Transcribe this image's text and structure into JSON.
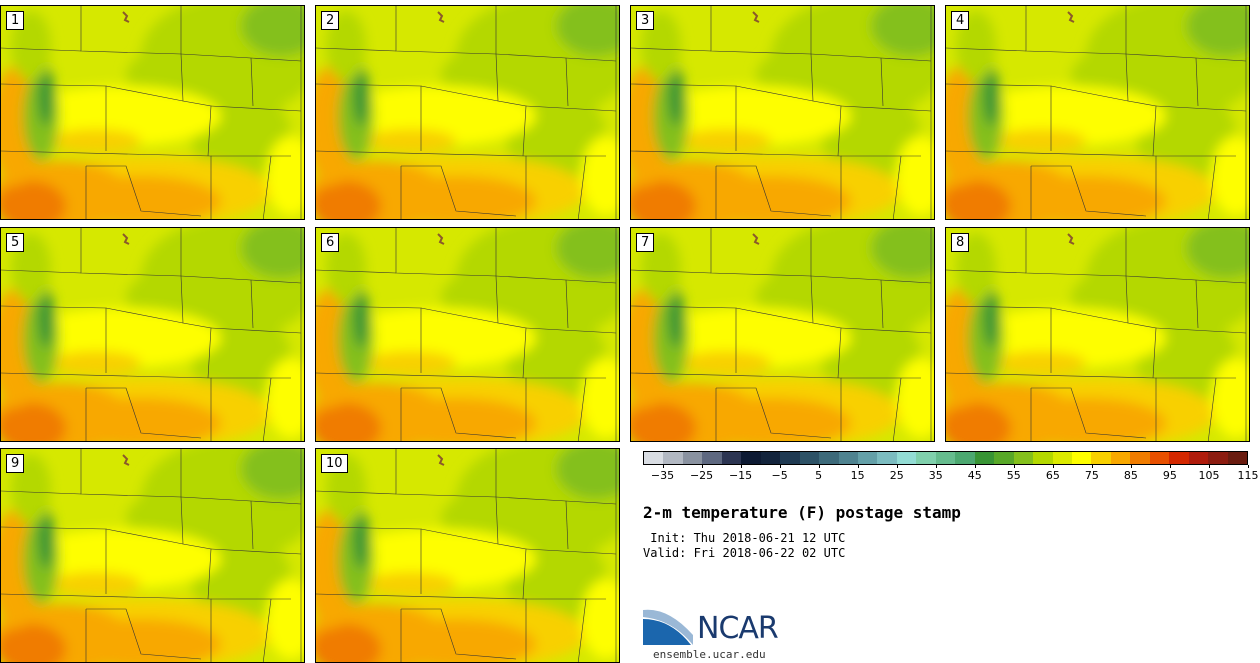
{
  "members": [
    "1",
    "2",
    "3",
    "4",
    "5",
    "6",
    "7",
    "8",
    "9",
    "10"
  ],
  "colorbar": {
    "colors": [
      "#d9dde3",
      "#b2b8c2",
      "#8a92a0",
      "#5e6880",
      "#2c3552",
      "#0d1a33",
      "#13243c",
      "#1f3a52",
      "#2d5266",
      "#3d6a7a",
      "#4f8390",
      "#64a0a8",
      "#7cbcc0",
      "#93dcd4",
      "#80d0ac",
      "#66bc8e",
      "#4ca870",
      "#389434",
      "#58a828",
      "#84c01c",
      "#b4d800",
      "#dcea00",
      "#fefe00",
      "#f8d000",
      "#f8a800",
      "#f07c00",
      "#e85000",
      "#d42800",
      "#b01c0c",
      "#8c1c10",
      "#6a1c10"
    ],
    "tick_labels": [
      "−35",
      "−25",
      "−15",
      "−5",
      "5",
      "15",
      "25",
      "35",
      "45",
      "55",
      "65",
      "75",
      "85",
      "95",
      "105",
      "115"
    ]
  },
  "title": "2-m temperature (F) postage stamp",
  "init": " Init: Thu 2018-06-21 12 UTC",
  "valid": "Valid: Fri 2018-06-22 02 UTC",
  "logo": {
    "text": "NCAR",
    "site": "ensemble.ucar.edu"
  }
}
